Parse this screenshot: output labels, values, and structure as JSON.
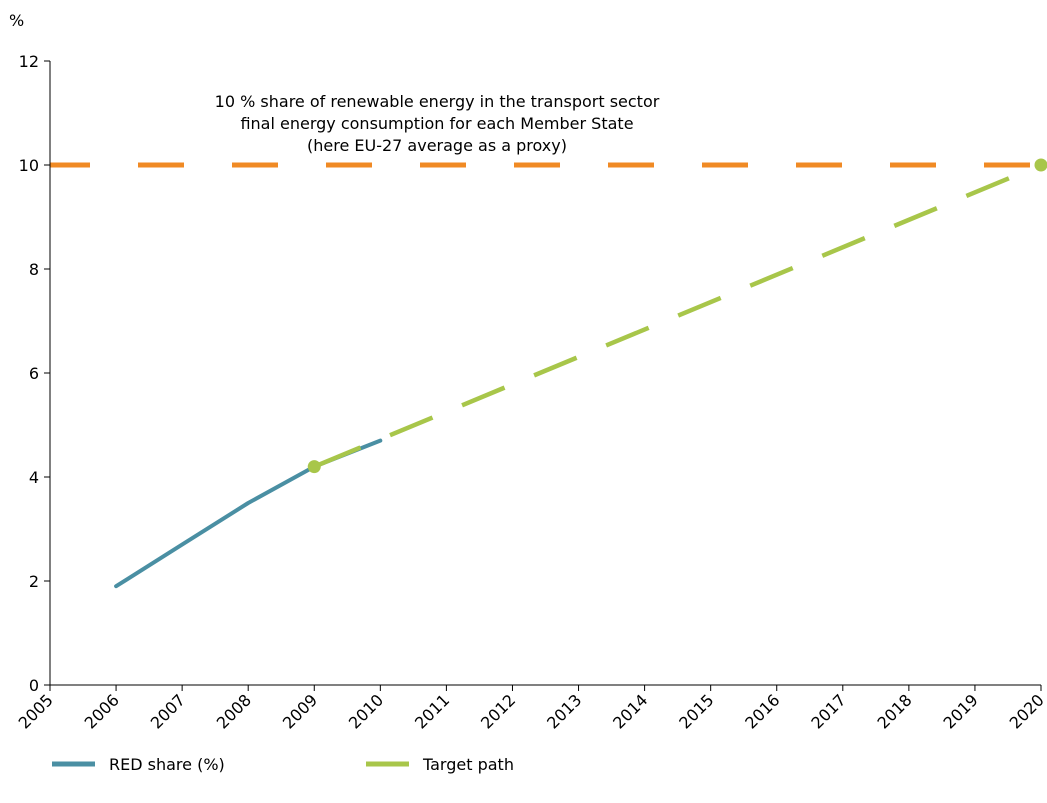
{
  "chart_data": {
    "type": "line",
    "title": "",
    "xlabel": "",
    "ylabel": "%",
    "xlim": [
      2005,
      2020
    ],
    "ylim": [
      0,
      12
    ],
    "x_ticks": [
      "2005",
      "2006",
      "2007",
      "2008",
      "2009",
      "2010",
      "2011",
      "2012",
      "2013",
      "2014",
      "2015",
      "2016",
      "2017",
      "2018",
      "2019",
      "2020"
    ],
    "y_ticks": [
      "0",
      "2",
      "4",
      "6",
      "8",
      "10",
      "12"
    ],
    "grid": false,
    "legend_position": "bottom-left",
    "series": [
      {
        "name": "RED share (%)",
        "color": "#4A8FA3",
        "style": "solid",
        "x": [
          2006,
          2007,
          2008,
          2009,
          2010
        ],
        "y": [
          1.9,
          2.7,
          3.5,
          4.2,
          4.7
        ]
      },
      {
        "name": "Target path",
        "color": "#A8C64A",
        "style": "dashed",
        "x": [
          2009,
          2020
        ],
        "y": [
          4.2,
          10.0
        ],
        "markers": true
      },
      {
        "color": "#F08A24",
        "style": "dashed",
        "x": [
          2005,
          2020
        ],
        "y": [
          10.0,
          10.0
        ]
      }
    ],
    "annotation": {
      "lines": [
        "10 % share of renewable energy in the transport sector",
        "final energy consumption for each Member State",
        "(here EU-27 average as a proxy)"
      ]
    }
  }
}
